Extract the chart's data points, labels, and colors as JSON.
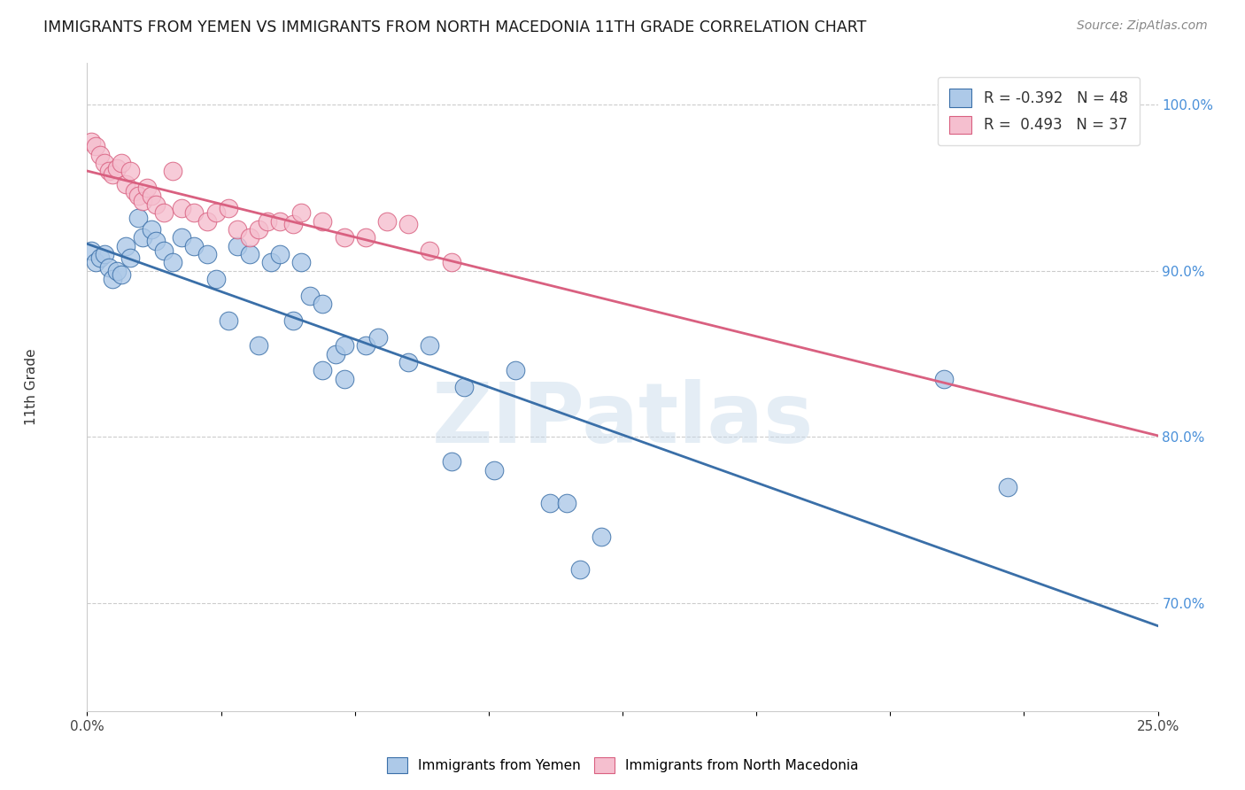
{
  "title": "IMMIGRANTS FROM YEMEN VS IMMIGRANTS FROM NORTH MACEDONIA 11TH GRADE CORRELATION CHART",
  "source": "Source: ZipAtlas.com",
  "ylabel": "11th Grade",
  "watermark": "ZIPatlas",
  "legend_blue_r": "R = -0.392",
  "legend_blue_n": "N = 48",
  "legend_pink_r": "R =  0.493",
  "legend_pink_n": "N = 37",
  "blue_color": "#adc9e8",
  "pink_color": "#f5bfcf",
  "blue_line_color": "#3a6fa8",
  "pink_line_color": "#d96080",
  "xmin": 0.0,
  "xmax": 0.25,
  "ymin": 0.635,
  "ymax": 1.025,
  "yemen_points": [
    [
      0.001,
      0.912
    ],
    [
      0.002,
      0.905
    ],
    [
      0.003,
      0.908
    ],
    [
      0.004,
      0.91
    ],
    [
      0.005,
      0.902
    ],
    [
      0.006,
      0.895
    ],
    [
      0.007,
      0.9
    ],
    [
      0.008,
      0.898
    ],
    [
      0.009,
      0.915
    ],
    [
      0.01,
      0.908
    ],
    [
      0.012,
      0.932
    ],
    [
      0.013,
      0.92
    ],
    [
      0.015,
      0.925
    ],
    [
      0.016,
      0.918
    ],
    [
      0.018,
      0.912
    ],
    [
      0.02,
      0.905
    ],
    [
      0.022,
      0.92
    ],
    [
      0.025,
      0.915
    ],
    [
      0.028,
      0.91
    ],
    [
      0.03,
      0.895
    ],
    [
      0.033,
      0.87
    ],
    [
      0.035,
      0.915
    ],
    [
      0.038,
      0.91
    ],
    [
      0.04,
      0.855
    ],
    [
      0.043,
      0.905
    ],
    [
      0.045,
      0.91
    ],
    [
      0.048,
      0.87
    ],
    [
      0.05,
      0.905
    ],
    [
      0.052,
      0.885
    ],
    [
      0.055,
      0.88
    ],
    [
      0.058,
      0.85
    ],
    [
      0.06,
      0.855
    ],
    [
      0.065,
      0.855
    ],
    [
      0.068,
      0.86
    ],
    [
      0.075,
      0.845
    ],
    [
      0.08,
      0.855
    ],
    [
      0.085,
      0.785
    ],
    [
      0.088,
      0.83
    ],
    [
      0.095,
      0.78
    ],
    [
      0.1,
      0.84
    ],
    [
      0.108,
      0.76
    ],
    [
      0.112,
      0.76
    ],
    [
      0.115,
      0.72
    ],
    [
      0.12,
      0.74
    ],
    [
      0.055,
      0.84
    ],
    [
      0.06,
      0.835
    ],
    [
      0.2,
      0.835
    ],
    [
      0.215,
      0.77
    ]
  ],
  "macedonia_points": [
    [
      0.001,
      0.978
    ],
    [
      0.002,
      0.975
    ],
    [
      0.003,
      0.97
    ],
    [
      0.004,
      0.965
    ],
    [
      0.005,
      0.96
    ],
    [
      0.006,
      0.958
    ],
    [
      0.007,
      0.962
    ],
    [
      0.008,
      0.965
    ],
    [
      0.009,
      0.952
    ],
    [
      0.01,
      0.96
    ],
    [
      0.011,
      0.948
    ],
    [
      0.012,
      0.945
    ],
    [
      0.013,
      0.942
    ],
    [
      0.014,
      0.95
    ],
    [
      0.015,
      0.945
    ],
    [
      0.016,
      0.94
    ],
    [
      0.018,
      0.935
    ],
    [
      0.02,
      0.96
    ],
    [
      0.022,
      0.938
    ],
    [
      0.025,
      0.935
    ],
    [
      0.028,
      0.93
    ],
    [
      0.03,
      0.935
    ],
    [
      0.033,
      0.938
    ],
    [
      0.035,
      0.925
    ],
    [
      0.038,
      0.92
    ],
    [
      0.04,
      0.925
    ],
    [
      0.042,
      0.93
    ],
    [
      0.045,
      0.93
    ],
    [
      0.048,
      0.928
    ],
    [
      0.05,
      0.935
    ],
    [
      0.055,
      0.93
    ],
    [
      0.06,
      0.92
    ],
    [
      0.065,
      0.92
    ],
    [
      0.07,
      0.93
    ],
    [
      0.075,
      0.928
    ],
    [
      0.08,
      0.912
    ],
    [
      0.085,
      0.905
    ]
  ]
}
